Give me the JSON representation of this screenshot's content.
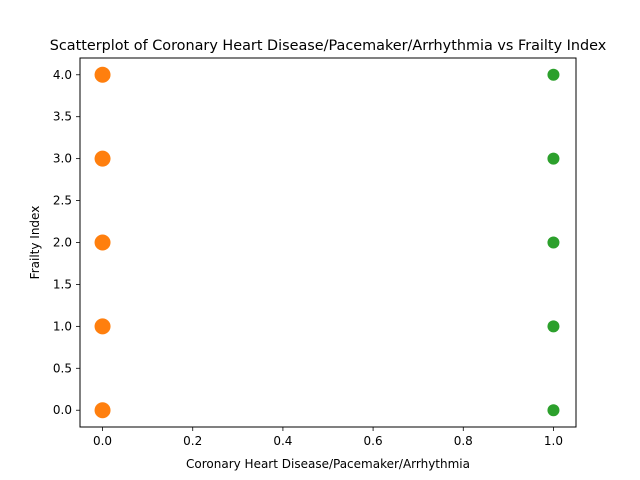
{
  "chart_data": {
    "type": "scatter",
    "title": "Scatterplot of Coronary Heart Disease/Pacemaker/Arrhythmia vs Frailty Index",
    "xlabel": "Coronary Heart Disease/Pacemaker/Arrhythmia",
    "ylabel": "Frailty Index",
    "xlim": [
      -0.05,
      1.05
    ],
    "ylim": [
      -0.2,
      4.2
    ],
    "x_ticks": [
      "0.0",
      "0.2",
      "0.4",
      "0.6",
      "0.8",
      "1.0"
    ],
    "y_ticks": [
      "0.0",
      "0.5",
      "1.0",
      "1.5",
      "2.0",
      "2.5",
      "3.0",
      "3.5",
      "4.0"
    ],
    "grid": false,
    "legend": "none",
    "series": [
      {
        "color": "#ff7f0e",
        "points": [
          {
            "x": 0,
            "y": 0
          },
          {
            "x": 0,
            "y": 1
          },
          {
            "x": 0,
            "y": 2
          },
          {
            "x": 0,
            "y": 3
          },
          {
            "x": 0,
            "y": 4
          }
        ]
      },
      {
        "color": "#2ca02c",
        "points": [
          {
            "x": 1,
            "y": 0
          },
          {
            "x": 1,
            "y": 1
          },
          {
            "x": 1,
            "y": 2
          },
          {
            "x": 1,
            "y": 3
          },
          {
            "x": 1,
            "y": 4
          }
        ]
      }
    ]
  }
}
